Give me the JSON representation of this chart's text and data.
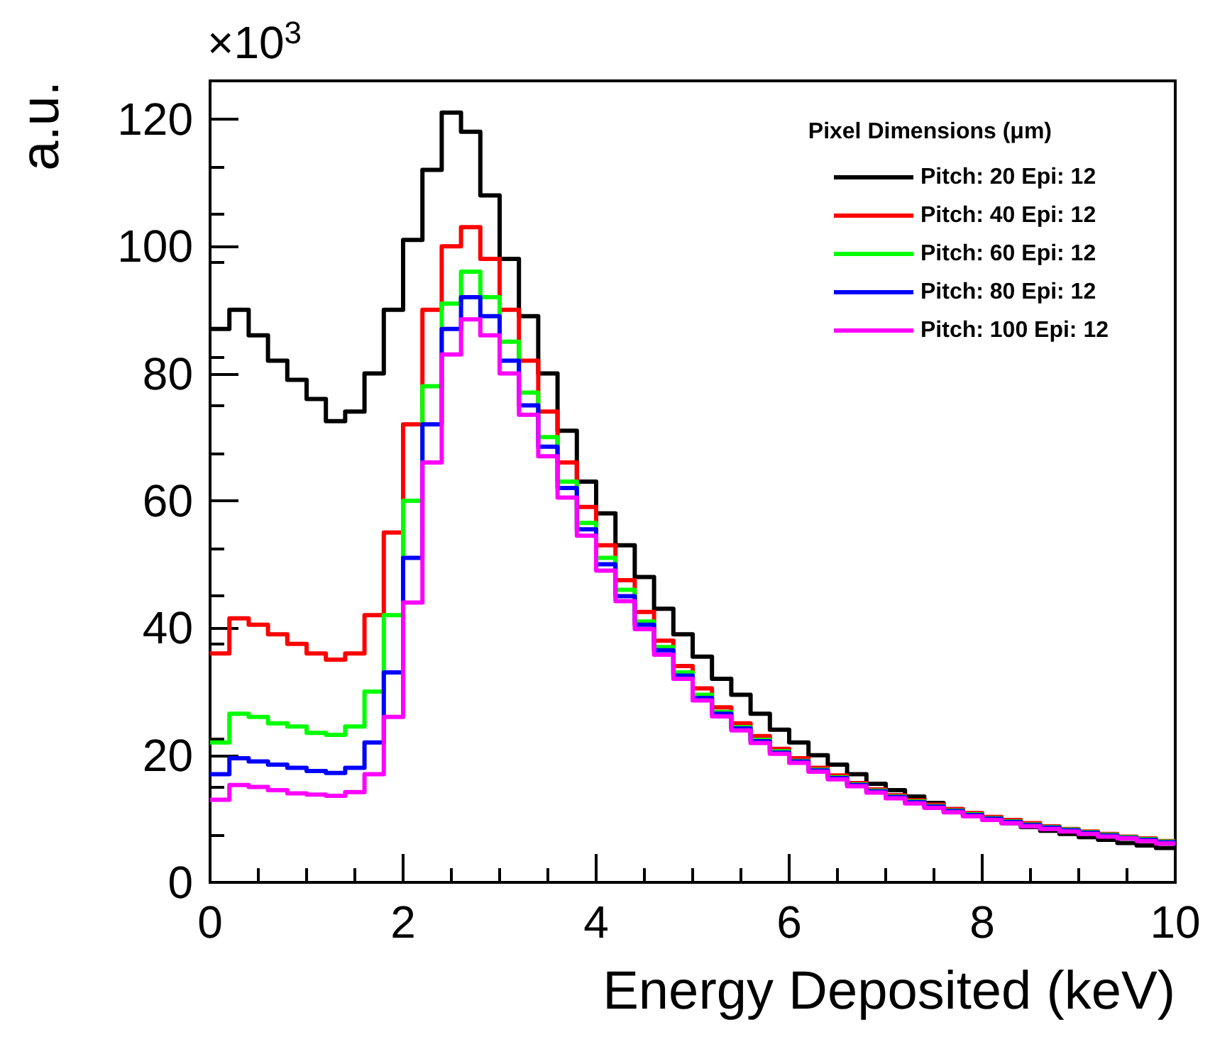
{
  "chart_data": {
    "type": "histogram",
    "xlabel": "Energy Deposited (keV)",
    "ylabel": "a.u.",
    "legend_title": "Pixel Dimensions (μm)",
    "annotations": [
      "×10$^{3}$"
    ],
    "xlim": [
      0,
      10
    ],
    "xticks": [
      0,
      2,
      4,
      6,
      8,
      10
    ],
    "ylim": [
      0,
      126
    ],
    "yticks": [
      0,
      20,
      40,
      60,
      80,
      100,
      120
    ],
    "grid": false,
    "legend": "top right",
    "bins": [
      0,
      0.2,
      0.4,
      0.6,
      0.8,
      1,
      1.2,
      1.4,
      1.6,
      1.8,
      2,
      2.2,
      2.4,
      2.6,
      2.8,
      3,
      3.2,
      3.4,
      3.6,
      3.8,
      4,
      4.2,
      4.4,
      4.6,
      4.8,
      5,
      5.2,
      5.4,
      5.6,
      5.8,
      6,
      6.2,
      6.4,
      6.6,
      6.8,
      7,
      7.2,
      7.4,
      7.6,
      7.8,
      8,
      8.2,
      8.4,
      8.6,
      8.8,
      9,
      9.2,
      9.4,
      9.6,
      9.8,
      10
    ],
    "series": [
      {
        "name": "Pitch: 20 Epi: 12",
        "color": "#000000",
        "values": [
          87,
          90,
          86,
          82,
          79,
          76,
          72.5,
          74,
          80,
          90,
          101,
          112,
          121,
          118,
          108,
          98,
          89,
          80,
          71,
          63,
          58,
          53,
          48,
          43,
          39,
          35.5,
          32,
          29.5,
          26.5,
          24,
          22,
          20,
          18.5,
          17,
          15.5,
          14.5,
          13.5,
          12.5,
          11.5,
          10.5,
          10,
          9.3,
          8.7,
          8.1,
          7.6,
          7.1,
          6.7,
          6.2,
          5.8,
          5.4
        ]
      },
      {
        "name": "Pitch: 40 Epi: 12",
        "color": "#ff0000",
        "values": [
          36,
          41.5,
          40.5,
          39,
          37.5,
          36,
          35,
          36,
          42,
          55,
          72,
          90,
          100,
          103,
          98,
          90,
          82,
          74,
          66,
          59,
          53,
          47.5,
          42.5,
          38,
          34,
          30.5,
          27.5,
          25,
          23,
          21,
          19.5,
          18,
          16.8,
          15.6,
          14.6,
          13.7,
          12.9,
          12.2,
          11.5,
          10.9,
          10.3,
          9.8,
          9.3,
          8.8,
          8.4,
          8,
          7.6,
          7.2,
          6.9,
          6.5
        ]
      },
      {
        "name": "Pitch: 60 Epi: 12",
        "color": "#00ff00",
        "values": [
          22,
          26.5,
          26,
          25,
          24.5,
          23.5,
          23.2,
          24.5,
          30,
          42,
          60,
          78,
          91,
          96,
          92,
          85,
          77,
          70,
          63,
          56.5,
          51,
          46,
          41,
          37,
          33,
          29.5,
          26.8,
          24.4,
          22.4,
          20.6,
          19.1,
          17.7,
          16.5,
          15.4,
          14.4,
          13.5,
          12.7,
          12,
          11.3,
          10.7,
          10.1,
          9.6,
          9.1,
          8.7,
          8.3,
          7.9,
          7.5,
          7.1,
          6.8,
          6.4
        ]
      },
      {
        "name": "Pitch: 80 Epi: 12",
        "color": "#0000ff",
        "values": [
          17,
          19.5,
          19,
          18.5,
          18,
          17.5,
          17.2,
          18,
          22,
          33,
          51,
          72,
          87,
          92,
          89,
          82,
          75,
          68.5,
          62,
          55.5,
          50,
          45,
          40.5,
          36.5,
          32.5,
          29,
          26.5,
          24.2,
          22.2,
          20.4,
          19,
          17.6,
          16.4,
          15.3,
          14.3,
          13.4,
          12.6,
          11.9,
          11.2,
          10.6,
          10,
          9.5,
          9,
          8.6,
          8.2,
          7.8,
          7.4,
          7,
          6.7,
          6.3
        ]
      },
      {
        "name": "Pitch: 100 Epi: 12",
        "color": "#ff00ff",
        "values": [
          13,
          15.3,
          15,
          14.5,
          14,
          13.8,
          13.6,
          14.2,
          17,
          26,
          44,
          66,
          83,
          88.5,
          86,
          80,
          73.5,
          67,
          60.5,
          54.5,
          49,
          44.2,
          39.8,
          35.8,
          32,
          28.6,
          26.1,
          23.9,
          21.9,
          20.2,
          18.8,
          17.4,
          16.2,
          15.1,
          14.1,
          13.2,
          12.4,
          11.7,
          11,
          10.4,
          9.8,
          9.3,
          8.8,
          8.4,
          8,
          7.6,
          7.2,
          6.9,
          6.5,
          6.1
        ]
      }
    ]
  }
}
